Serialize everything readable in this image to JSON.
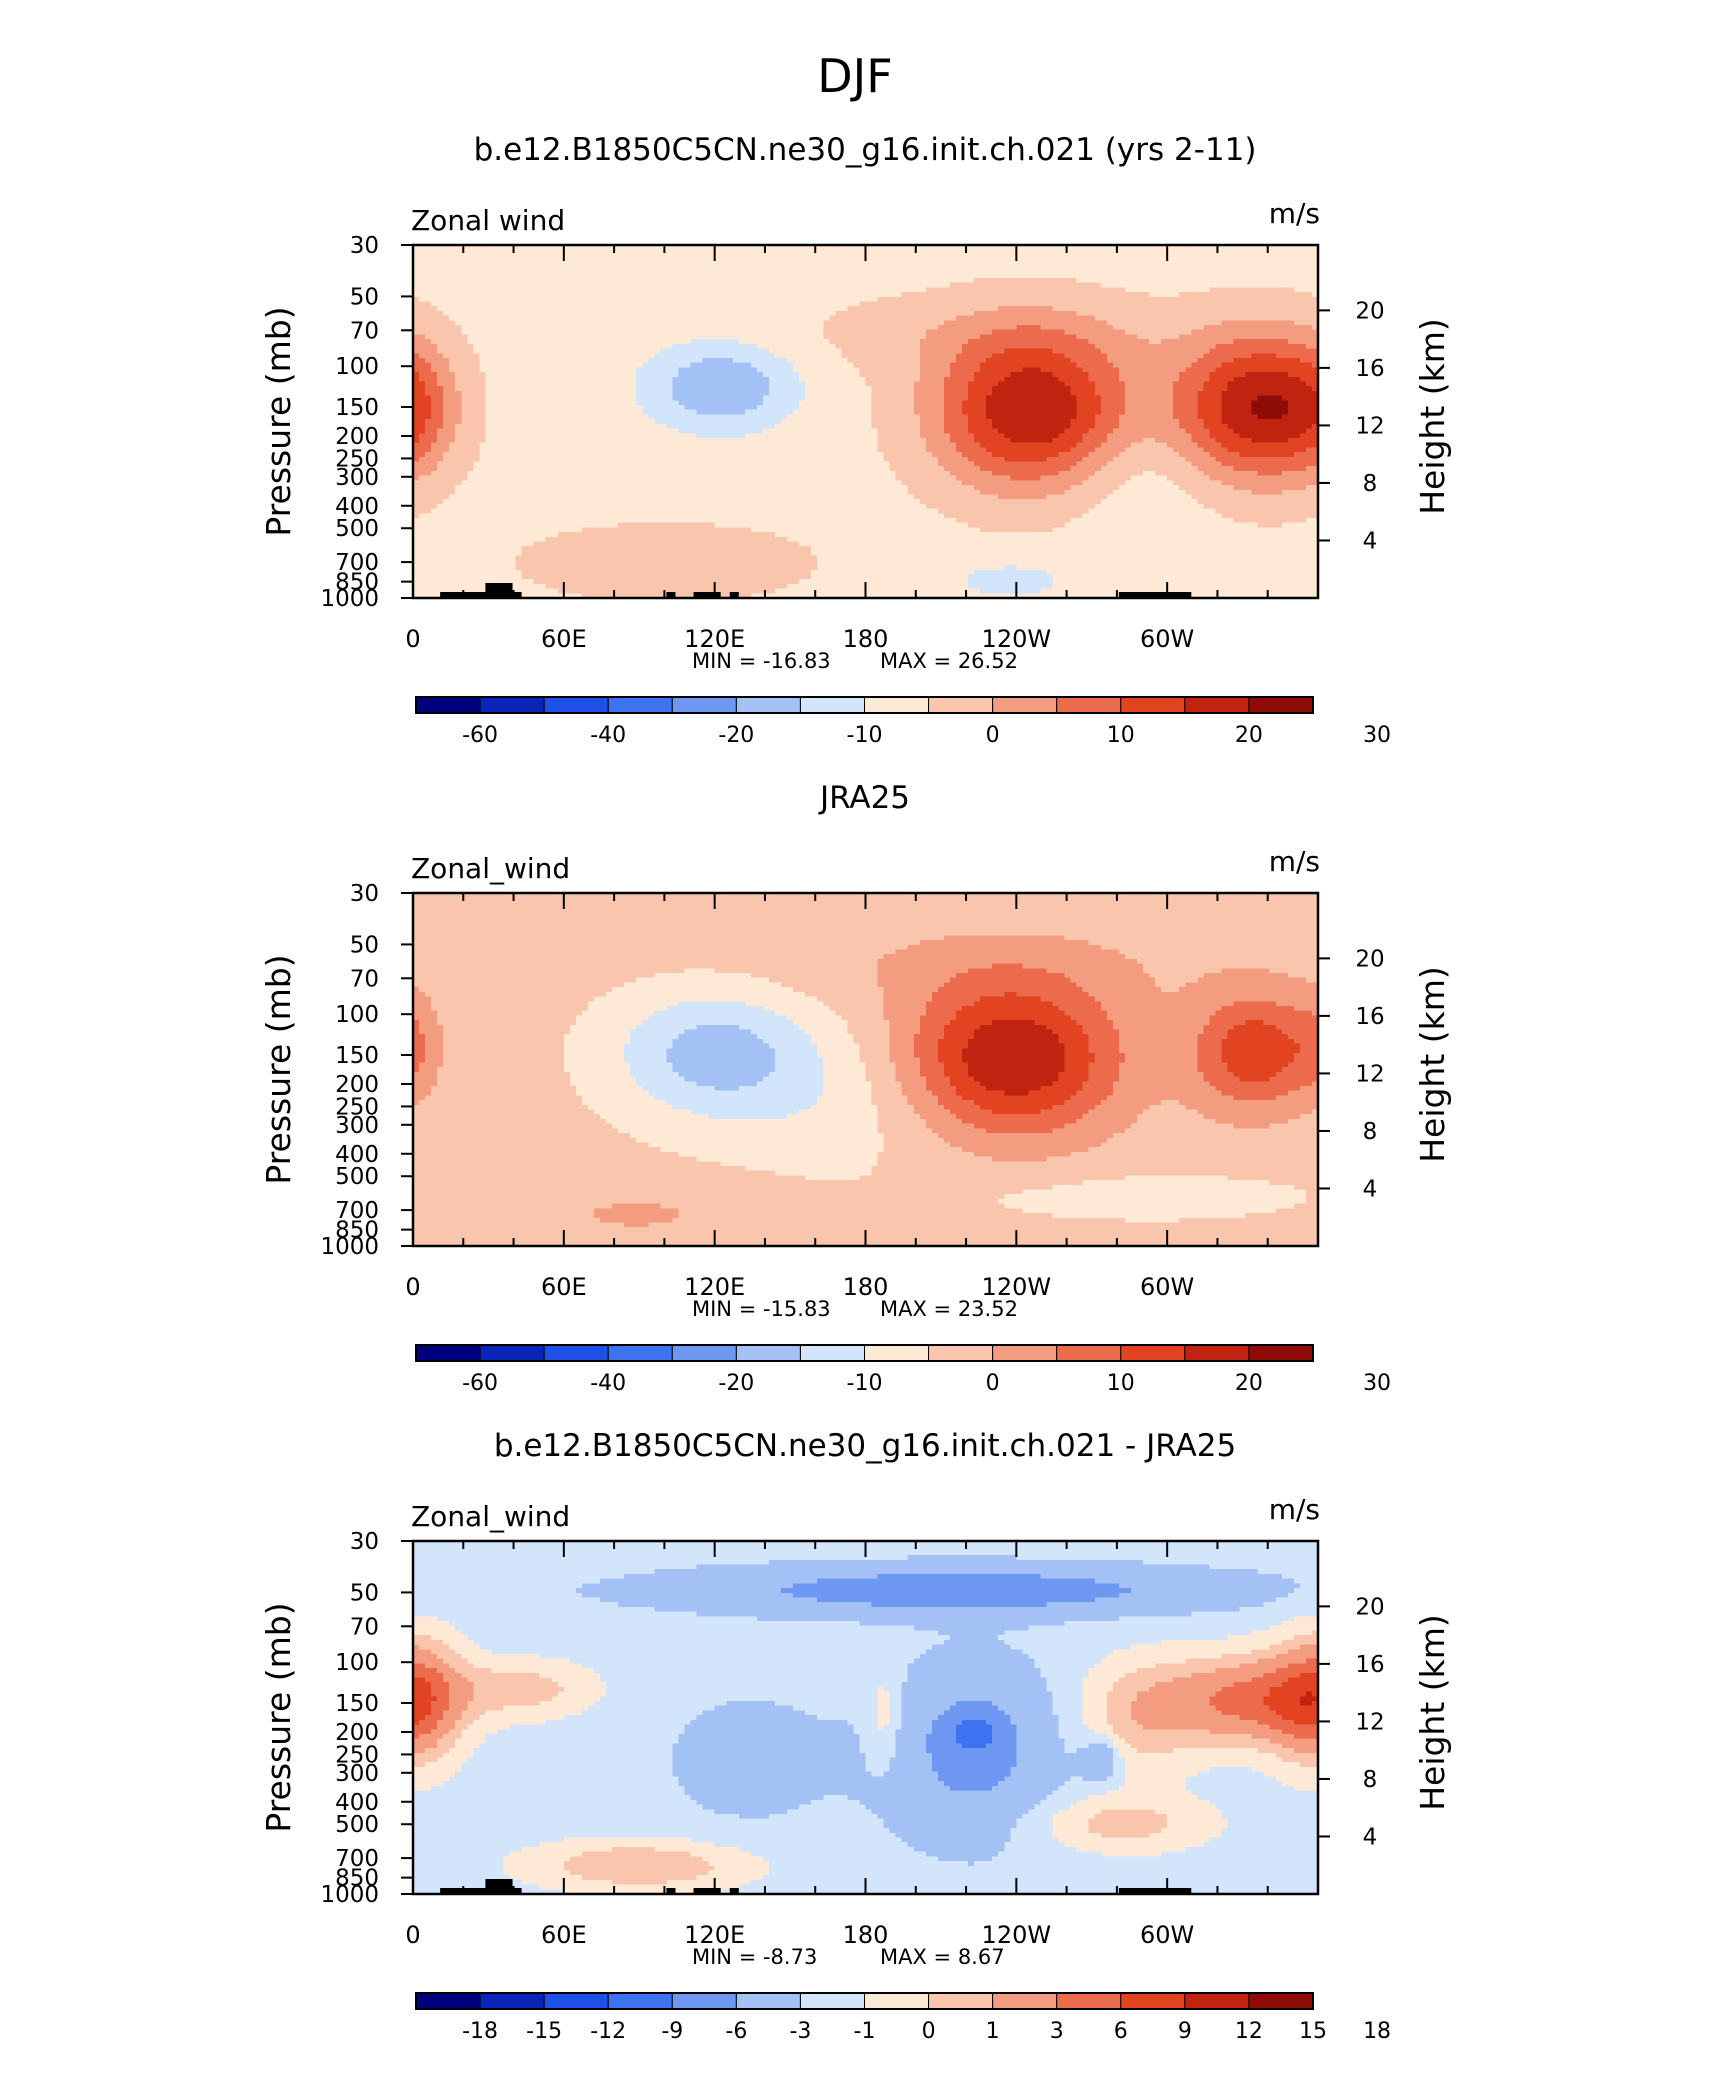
{
  "figure_title": "DJF",
  "chart_data": [
    {
      "type": "heatmap",
      "title": "b.e12.B1850C5CN.ne30_g16.init.ch.021 (yrs 2-11)",
      "variable_label": "Zonal wind",
      "units": "m/s",
      "ylabel": "Pressure (mb)",
      "ylabel_right": "Height (km)",
      "x_ticks": [
        "0",
        "60E",
        "120E",
        "180",
        "120W",
        "60W"
      ],
      "y_ticks": [
        "30",
        "50",
        "70",
        "100",
        "150",
        "200",
        "250",
        "300",
        "400",
        "500",
        "700",
        "850",
        "1000"
      ],
      "height_ticks": [
        "20",
        "16",
        "12",
        "8",
        "4"
      ],
      "min_label": "MIN = -16.83",
      "max_label": "MAX =  26.52",
      "min": -16.83,
      "max": 26.52,
      "colorbar": {
        "labels": [
          "-60",
          "-40",
          "-20",
          "-10",
          "0",
          "10",
          "20",
          "30"
        ],
        "colors": [
          "#00007f",
          "#0a24b8",
          "#1e4fe6",
          "#3d73f0",
          "#6e97f2",
          "#a3c1f5",
          "#d3e5fb",
          "#fde9d6",
          "#f9c6ad",
          "#f49c7f",
          "#ec6b4c",
          "#e24320",
          "#c0230f",
          "#8e0b07"
        ]
      }
    },
    {
      "type": "heatmap",
      "title": "JRA25",
      "variable_label": "Zonal_wind",
      "units": "m/s",
      "ylabel": "Pressure (mb)",
      "ylabel_right": "Height (km)",
      "x_ticks": [
        "0",
        "60E",
        "120E",
        "180",
        "120W",
        "60W"
      ],
      "y_ticks": [
        "30",
        "50",
        "70",
        "100",
        "150",
        "200",
        "250",
        "300",
        "400",
        "500",
        "700",
        "850",
        "1000"
      ],
      "height_ticks": [
        "20",
        "16",
        "12",
        "8",
        "4"
      ],
      "min_label": "MIN = -15.83",
      "max_label": "MAX =  23.52",
      "min": -15.83,
      "max": 23.52,
      "colorbar": {
        "labels": [
          "-60",
          "-40",
          "-20",
          "-10",
          "0",
          "10",
          "20",
          "30"
        ],
        "colors": [
          "#00007f",
          "#0a24b8",
          "#1e4fe6",
          "#3d73f0",
          "#6e97f2",
          "#a3c1f5",
          "#d3e5fb",
          "#fde9d6",
          "#f9c6ad",
          "#f49c7f",
          "#ec6b4c",
          "#e24320",
          "#c0230f",
          "#8e0b07"
        ]
      }
    },
    {
      "type": "heatmap",
      "title": "b.e12.B1850C5CN.ne30_g16.init.ch.021 - JRA25",
      "variable_label": "Zonal_wind",
      "units": "m/s",
      "ylabel": "Pressure (mb)",
      "ylabel_right": "Height (km)",
      "x_ticks": [
        "0",
        "60E",
        "120E",
        "180",
        "120W",
        "60W"
      ],
      "y_ticks": [
        "30",
        "50",
        "70",
        "100",
        "150",
        "200",
        "250",
        "300",
        "400",
        "500",
        "700",
        "850",
        "1000"
      ],
      "height_ticks": [
        "20",
        "16",
        "12",
        "8",
        "4"
      ],
      "min_label": "MIN =  -8.73",
      "max_label": "MAX =   8.67",
      "min": -8.73,
      "max": 8.67,
      "colorbar": {
        "labels": [
          "-18",
          "-15",
          "-12",
          "-9",
          "-6",
          "-3",
          "-1",
          "0",
          "1",
          "3",
          "6",
          "9",
          "12",
          "15",
          "18"
        ],
        "colors": [
          "#00007f",
          "#0a24b8",
          "#1e4fe6",
          "#3d73f0",
          "#6e97f2",
          "#a3c1f5",
          "#d3e5fb",
          "#fde9d6",
          "#f9c6ad",
          "#f49c7f",
          "#ec6b4c",
          "#e24320",
          "#c0230f",
          "#8e0b07"
        ]
      }
    }
  ]
}
